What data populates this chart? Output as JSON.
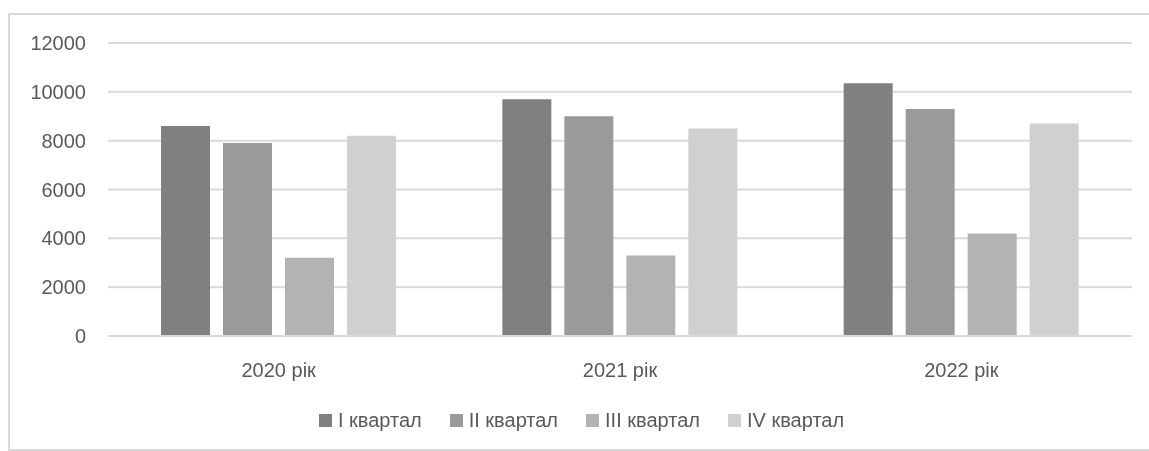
{
  "chart_data": {
    "type": "bar",
    "categories": [
      "2020 рік",
      "2021 рік",
      "2022 рік"
    ],
    "series": [
      {
        "name": "I квартал",
        "color": "#808080",
        "values": [
          8600,
          9700,
          10350
        ]
      },
      {
        "name": "II квартал",
        "color": "#9a9a9a",
        "values": [
          7900,
          9000,
          9300
        ]
      },
      {
        "name": "III квартал",
        "color": "#b3b3b3",
        "values": [
          3200,
          3300,
          4200
        ]
      },
      {
        "name": "IV квартал",
        "color": "#d0d0d0",
        "values": [
          8200,
          8500,
          8700
        ]
      }
    ],
    "ylim": [
      0,
      12000
    ],
    "yticks": [
      0,
      2000,
      4000,
      6000,
      8000,
      10000,
      12000
    ],
    "grid": "y",
    "legend": "bottom"
  }
}
